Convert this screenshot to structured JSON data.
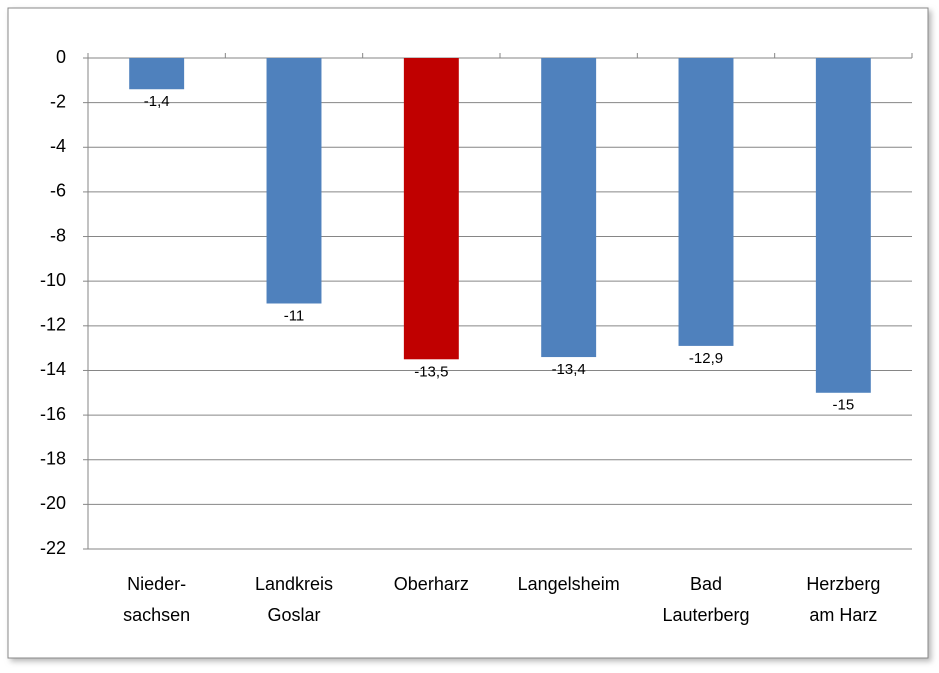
{
  "chart_data": {
    "type": "bar",
    "categories": [
      [
        "Nieder-",
        "sachsen"
      ],
      [
        "Landkreis",
        "Goslar"
      ],
      [
        "Oberharz"
      ],
      [
        "Langelsheim"
      ],
      [
        "Bad",
        "Lauterberg"
      ],
      [
        "Herzberg",
        "am Harz"
      ]
    ],
    "values": [
      -1.4,
      -11,
      -13.5,
      -13.4,
      -12.9,
      -15
    ],
    "value_labels": [
      "-1,4",
      "-11",
      "-13,5",
      "-13,4",
      "-12,9",
      "-15"
    ],
    "colors": [
      "#4f81bd",
      "#4f81bd",
      "#c00000",
      "#4f81bd",
      "#4f81bd",
      "#4f81bd"
    ],
    "ylim": [
      -22,
      0
    ],
    "yticks": [
      0,
      -2,
      -4,
      -6,
      -8,
      -10,
      -12,
      -14,
      -16,
      -18,
      -20,
      -22
    ],
    "grid": true
  }
}
